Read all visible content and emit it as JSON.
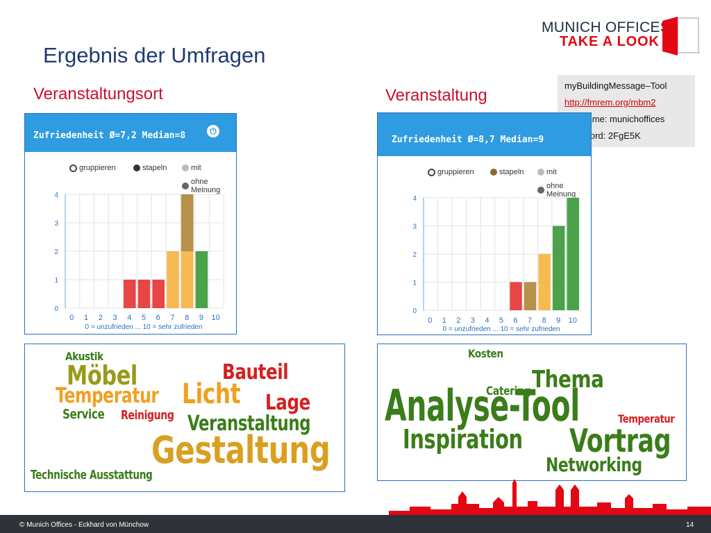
{
  "header": {
    "title": "Ergebnis  der Umfragen",
    "logo_line1": "MUNICH OFFICES",
    "logo_line2": "TAKE A LOOK"
  },
  "left": {
    "subtitle": "Veranstaltungsort",
    "panel_header": "Zufriedenheit Ø=7,2 Median=8"
  },
  "right": {
    "subtitle": "Veranstaltung",
    "panel_header": "Zufriedenheit Ø=8,7 Median=9"
  },
  "legend": {
    "gruppieren": "gruppieren",
    "stapeln": "stapeln",
    "mit": "mit",
    "ohne": "ohne Meinung"
  },
  "info": {
    "line1": "myBuildingMessage–Tool",
    "link": "http://fmrem.org/mbm2",
    "line3": "username: munichoffices",
    "line4": "password: 2FgE5K"
  },
  "cloud_left": [
    {
      "text": "Akustik",
      "color": "#3a7d1a"
    },
    {
      "text": "Möbel",
      "color": "#9a9a1a"
    },
    {
      "text": "Bauteil",
      "color": "#d42020"
    },
    {
      "text": "Temperatur",
      "color": "#f0a020"
    },
    {
      "text": "Licht",
      "color": "#f0a020"
    },
    {
      "text": "Lage",
      "color": "#d42020"
    },
    {
      "text": "Service",
      "color": "#3a7d1a"
    },
    {
      "text": "Reinigung",
      "color": "#d42020"
    },
    {
      "text": "Veranstaltung",
      "color": "#3a7d1a"
    },
    {
      "text": "Gestaltung",
      "color": "#d9a020"
    },
    {
      "text": "Technische Ausstattung",
      "color": "#3a7d1a"
    }
  ],
  "cloud_right": [
    {
      "text": "Kosten",
      "color": "#3a7d1a"
    },
    {
      "text": "Thema",
      "color": "#3a7d1a"
    },
    {
      "text": "Catering",
      "color": "#3a7d1a"
    },
    {
      "text": "Analyse-Tool",
      "color": "#3a7d1a"
    },
    {
      "text": "Temperatur",
      "color": "#d42020"
    },
    {
      "text": "Inspiration",
      "color": "#3a7d1a"
    },
    {
      "text": "Vortrag",
      "color": "#3a7d1a"
    },
    {
      "text": "Networking",
      "color": "#3a7d1a"
    }
  ],
  "footer": {
    "left": "© Munich Offices  -  Eckhard von Münchow",
    "page": "14"
  },
  "colors": {
    "red": "#e63636",
    "brown": "#b0883a",
    "orange": "#f5b441",
    "green": "#3c9a3c",
    "header_blue": "#2f9be0"
  },
  "chart_data": [
    {
      "type": "bar",
      "title": "Zufriedenheit Ø=7,2 Median=8",
      "xlabel": "0 = unzufrieden ... 10 = sehr zufrieden",
      "categories": [
        "0",
        "1",
        "2",
        "3",
        "4",
        "5",
        "6",
        "7",
        "8",
        "9",
        "10"
      ],
      "ylim": [
        0,
        4
      ],
      "yticks": [
        "0",
        "1",
        "2",
        "3",
        "4"
      ],
      "series": [
        {
          "values": [
            0,
            0,
            0,
            0,
            1,
            1,
            1,
            2,
            2,
            2,
            0
          ],
          "colors": [
            "",
            "",
            "",
            "",
            "#e63636",
            "#e63636",
            "#e63636",
            "#f5b441",
            "#f5b441",
            "#3c9a3c",
            ""
          ]
        },
        {
          "values": [
            0,
            0,
            0,
            0,
            0,
            0,
            0,
            0,
            2,
            0,
            0
          ],
          "colors": [
            "",
            "",
            "",
            "",
            "",
            "",
            "",
            "",
            "#b0883a",
            "",
            ""
          ]
        }
      ]
    },
    {
      "type": "bar",
      "title": "Zufriedenheit Ø=8,7 Median=9",
      "xlabel": "0 = unzufrieden ... 10 = sehr zufrieden",
      "categories": [
        "0",
        "1",
        "2",
        "3",
        "4",
        "5",
        "6",
        "7",
        "8",
        "9",
        "10"
      ],
      "ylim": [
        0,
        4
      ],
      "yticks": [
        "0",
        "1",
        "2",
        "3",
        "4"
      ],
      "series": [
        {
          "values": [
            0,
            0,
            0,
            0,
            0,
            0,
            1,
            1,
            2,
            3,
            4
          ],
          "colors": [
            "",
            "",
            "",
            "",
            "",
            "",
            "#e63636",
            "#b0883a",
            "#f5b441",
            "#3c9a3c",
            "#3c9a3c"
          ]
        }
      ]
    }
  ]
}
